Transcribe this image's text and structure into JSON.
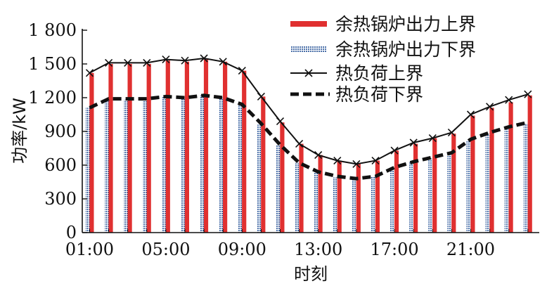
{
  "chart_data": {
    "type": "bar",
    "xlabel": "时刻",
    "ylabel": "功率/kW",
    "ylim": [
      0,
      1800
    ],
    "yticks": [
      0,
      300,
      600,
      900,
      1200,
      1500,
      1800
    ],
    "ytick_labels": [
      "0",
      "300",
      "600",
      "900",
      "1 200",
      "1 500",
      "1 800"
    ],
    "xtick_labels": [
      "01:00",
      "05:00",
      "09:00",
      "13:00",
      "17:00",
      "21:00"
    ],
    "xtick_positions": [
      1,
      5,
      9,
      13,
      17,
      21
    ],
    "x": [
      1,
      2,
      3,
      4,
      5,
      6,
      7,
      8,
      9,
      10,
      11,
      12,
      13,
      14,
      15,
      16,
      17,
      18,
      19,
      20,
      21,
      22,
      23,
      24
    ],
    "legend_position": "top-right",
    "series": [
      {
        "name": "余热锅炉出力上界",
        "kind": "bar",
        "color": "#e03030",
        "values": [
          1420,
          1500,
          1500,
          1500,
          1530,
          1520,
          1540,
          1520,
          1440,
          1210,
          980,
          790,
          690,
          640,
          610,
          640,
          730,
          790,
          840,
          880,
          1040,
          1110,
          1160,
          1220
        ]
      },
      {
        "name": "余热锅炉出力下界",
        "kind": "bar",
        "color": "#4a6fa8",
        "values": [
          1110,
          1190,
          1180,
          1190,
          1210,
          1200,
          1220,
          1200,
          1130,
          960,
          780,
          620,
          540,
          490,
          480,
          500,
          580,
          630,
          660,
          700,
          820,
          880,
          930,
          970
        ]
      },
      {
        "name": "热负荷上界",
        "kind": "line",
        "color": "#111111",
        "values": [
          1420,
          1510,
          1510,
          1510,
          1540,
          1530,
          1550,
          1520,
          1440,
          1210,
          990,
          790,
          690,
          640,
          610,
          640,
          730,
          800,
          840,
          890,
          1050,
          1120,
          1180,
          1230
        ]
      },
      {
        "name": "热负荷下界",
        "kind": "dashed-line",
        "color": "#111111",
        "values": [
          1110,
          1190,
          1190,
          1190,
          1210,
          1200,
          1220,
          1200,
          1140,
          970,
          780,
          620,
          540,
          500,
          480,
          500,
          580,
          630,
          670,
          710,
          830,
          890,
          940,
          980
        ]
      }
    ]
  }
}
